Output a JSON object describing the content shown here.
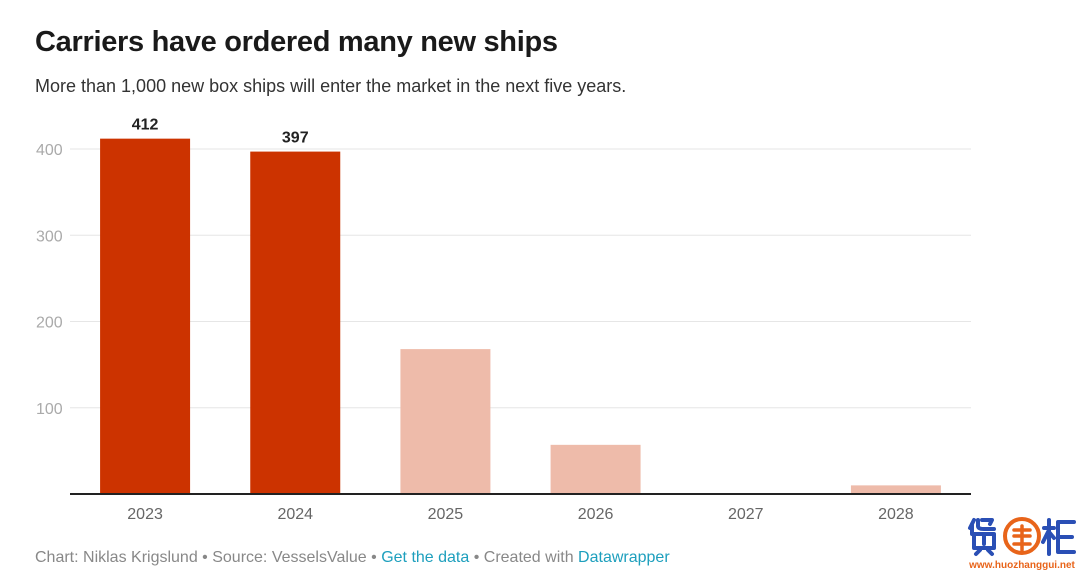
{
  "title": "Carriers have ordered many new ships",
  "subtitle": "More than 1,000 new box ships will enter the market in the next five years.",
  "chart_data": {
    "type": "bar",
    "categories": [
      "2023",
      "2024",
      "2025",
      "2026",
      "2027",
      "2028"
    ],
    "values": [
      412,
      397,
      168,
      57,
      1,
      10
    ],
    "data_labels": [
      "412",
      "397",
      "",
      "",
      "",
      ""
    ],
    "colors": [
      "#cc3300",
      "#cc3300",
      "#eebbaa",
      "#eebbaa",
      "#eebbaa",
      "#eebbaa"
    ],
    "ylim": [
      0,
      400
    ],
    "yticks": [
      100,
      200,
      300,
      400
    ],
    "grid": true,
    "xlabel": "",
    "ylabel": ""
  },
  "footer": {
    "credit": "Chart: Niklas Krigslund",
    "separator": " • ",
    "source": "Source: VesselsValue",
    "get_data_label": "Get the data",
    "created_with": "Created with",
    "tool": "Datawrapper"
  },
  "logo": {
    "name": "货掌柜",
    "url_text": "www.huozhanggui.net",
    "colors": {
      "blue": "#2a4fb5",
      "orange": "#e8641a"
    }
  }
}
